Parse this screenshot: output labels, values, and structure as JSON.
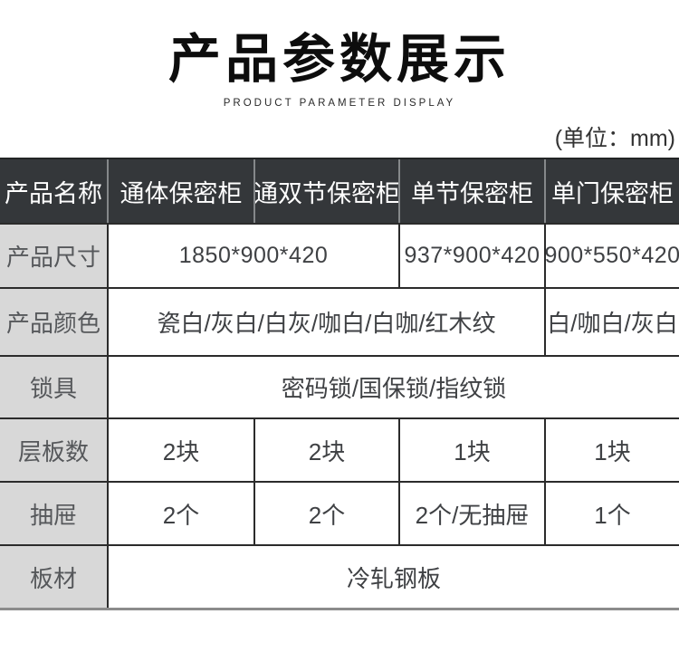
{
  "page": {
    "title": "产品参数展示",
    "subtitle": "PRODUCT PARAMETER DISPLAY",
    "unit_note": "(单位：mm)"
  },
  "table": {
    "header_row": {
      "label": "产品名称",
      "columns": [
        "通体保密柜",
        "通双节保密柜",
        "单节保密柜",
        "单门保密柜"
      ]
    },
    "rows": [
      {
        "label": "产品尺寸",
        "cells": [
          "1850*900*420",
          "937*900*420",
          "900*550*420"
        ]
      },
      {
        "label": "产品颜色",
        "cells": [
          "瓷白/灰白/白灰/咖白/白咖/红木纹",
          "白/咖白/灰白"
        ]
      },
      {
        "label": "锁具",
        "cells": [
          "密码锁/国保锁/指纹锁"
        ]
      },
      {
        "label": "层板数",
        "cells": [
          "2块",
          "2块",
          "1块",
          "1块"
        ]
      },
      {
        "label": "抽屉",
        "cells": [
          "2个",
          "2个",
          "2个/无抽屉",
          "1个"
        ]
      },
      {
        "label": "板材",
        "cells": [
          "冷轧钢板"
        ]
      }
    ]
  },
  "colors": {
    "header_bg": "#34373a",
    "header_text": "#ffffff",
    "header_divider": "#85888a",
    "label_bg": "#d8d8d8",
    "label_text": "#56585b",
    "body_text": "#3f4144",
    "border": "#2b2b2b",
    "table_bottom_border": "#8c8c8c"
  }
}
